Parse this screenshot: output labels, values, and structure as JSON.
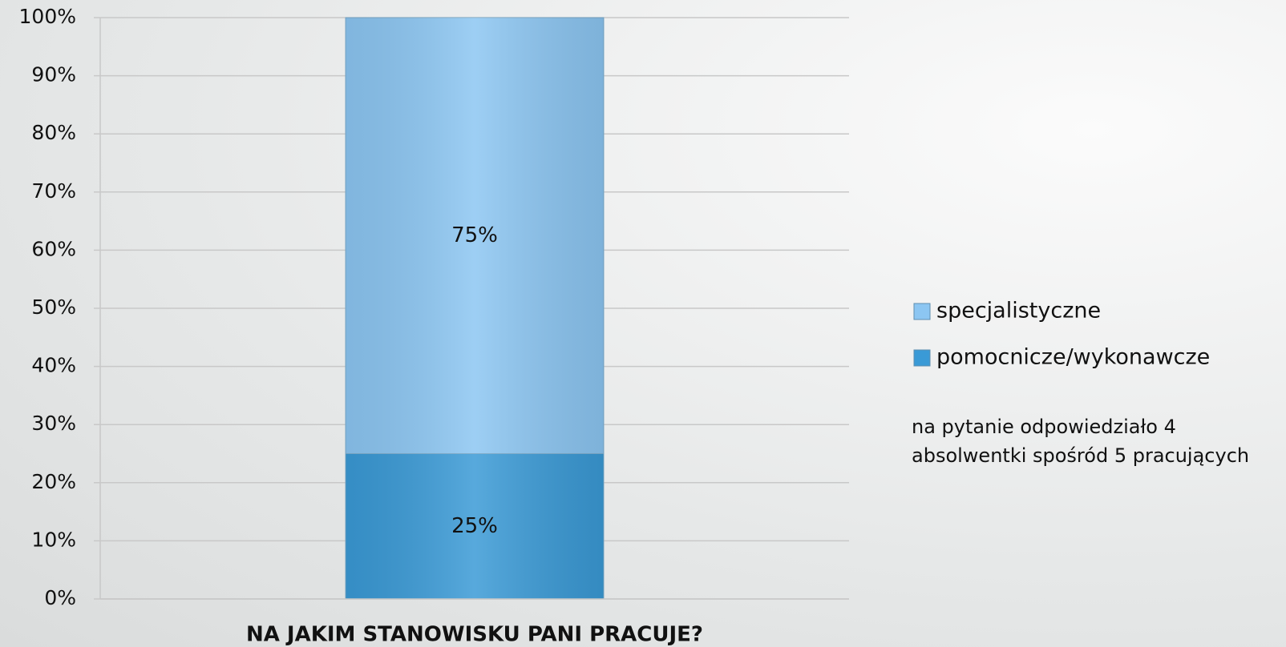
{
  "chart_data": {
    "type": "stacked_bar",
    "categories": [
      "NA JAKIM STANOWISKU PANI PRACUJE?"
    ],
    "series": [
      {
        "name": "pomocnicze/wykonawcze",
        "color": "#3a9ad6",
        "values": [
          25
        ],
        "value_labels": [
          "25%"
        ]
      },
      {
        "name": "specjalistyczne",
        "color": "#8cc6f2",
        "values": [
          75
        ],
        "value_labels": [
          "75%"
        ]
      }
    ],
    "ylim": [
      0,
      100
    ],
    "yticks": [
      {
        "value": 0,
        "label": "0%"
      },
      {
        "value": 10,
        "label": "10%"
      },
      {
        "value": 20,
        "label": "20%"
      },
      {
        "value": 30,
        "label": "30%"
      },
      {
        "value": 40,
        "label": "40%"
      },
      {
        "value": 50,
        "label": "50%"
      },
      {
        "value": 60,
        "label": "60%"
      },
      {
        "value": 70,
        "label": "70%"
      },
      {
        "value": 80,
        "label": "80%"
      },
      {
        "value": 90,
        "label": "90%"
      },
      {
        "value": 100,
        "label": "100%"
      }
    ],
    "grid": true,
    "legend": "right",
    "annotation": [
      "na pytanie odpowiedziało 4",
      "absolwentki spośród 5 pracujących"
    ]
  }
}
